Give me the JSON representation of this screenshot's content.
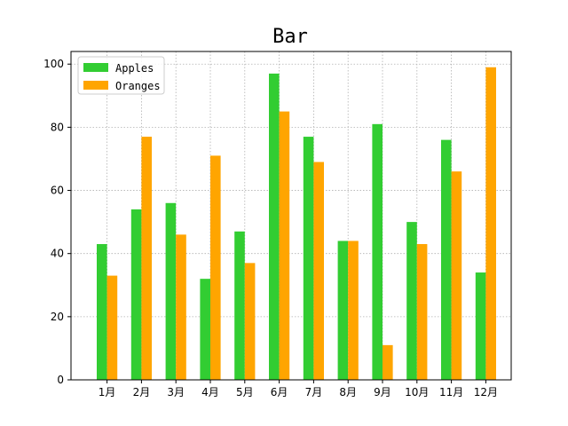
{
  "chart_data": {
    "type": "bar",
    "title": "Bar",
    "xlabel": "",
    "ylabel": "",
    "categories": [
      "1月",
      "2月",
      "3月",
      "4月",
      "5月",
      "6月",
      "7月",
      "8月",
      "9月",
      "10月",
      "11月",
      "12月"
    ],
    "series": [
      {
        "name": "Apples",
        "color": "#32cd32",
        "values": [
          43,
          54,
          56,
          32,
          47,
          97,
          77,
          44,
          81,
          50,
          76,
          34
        ]
      },
      {
        "name": "Oranges",
        "color": "#ffa500",
        "values": [
          33,
          77,
          46,
          71,
          37,
          85,
          69,
          44,
          11,
          43,
          66,
          99
        ]
      }
    ],
    "ylim": [
      0,
      104
    ],
    "yticks": [
      0,
      20,
      40,
      60,
      80,
      100
    ],
    "grid": true,
    "legend": "top-left"
  }
}
